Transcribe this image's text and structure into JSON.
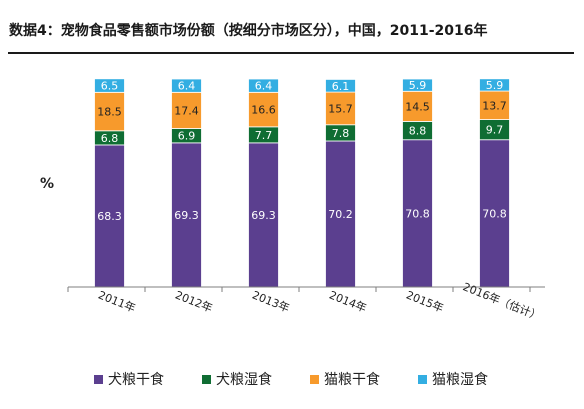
{
  "chart_data": {
    "type": "bar",
    "stacked": true,
    "title": "数据4：宠物食品零售额市场份额（按细分市场区分），中国，2011-2016年",
    "ylabel": "%",
    "xlabel": "",
    "ylim": [
      0,
      100
    ],
    "categories": [
      "2011年",
      "2012年",
      "2013年",
      "2014年",
      "2015年",
      "2016年（估计）"
    ],
    "series": [
      {
        "name": "犬粮干食",
        "color": "#5b3f8f",
        "values": [
          68.3,
          69.3,
          69.3,
          70.2,
          70.8,
          70.8
        ]
      },
      {
        "name": "犬粮湿食",
        "color": "#0f6d33",
        "values": [
          6.8,
          6.9,
          7.7,
          7.8,
          8.8,
          9.7
        ]
      },
      {
        "name": "猫粮干食",
        "color": "#f79a2c",
        "values": [
          18.5,
          17.4,
          16.6,
          15.7,
          14.5,
          13.7
        ]
      },
      {
        "name": "猫粮湿食",
        "color": "#33aee2",
        "values": [
          6.5,
          6.4,
          6.4,
          6.1,
          5.9,
          5.9
        ]
      }
    ],
    "legend": "bottom",
    "grid": false
  }
}
